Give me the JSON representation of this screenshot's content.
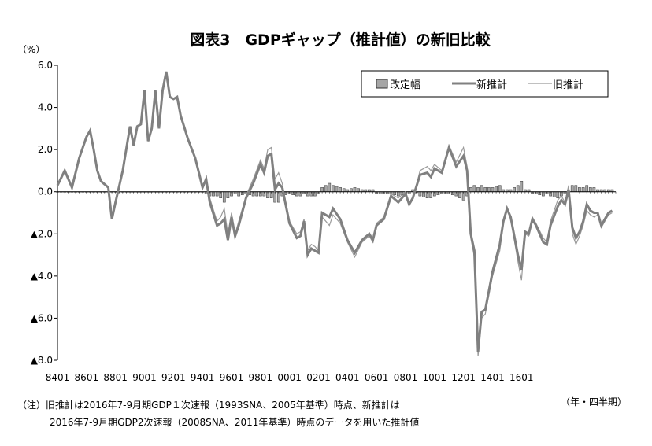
{
  "chart_data": {
    "type": "line",
    "title": "図表3　GDPギャップ（推計値）の新旧比較",
    "y_unit_label": "（%）",
    "x_unit_label": "（年・四半期）",
    "ylim": [
      -8,
      6
    ],
    "y_ticks": [
      {
        "value": 6,
        "label": "6.0"
      },
      {
        "value": 4,
        "label": "4.0"
      },
      {
        "value": 2,
        "label": "2.0"
      },
      {
        "value": 0,
        "label": "0.0"
      },
      {
        "value": -2,
        "label": "▲2.0"
      },
      {
        "value": -4,
        "label": "▲4.0"
      },
      {
        "value": -6,
        "label": "▲6.0"
      },
      {
        "value": -8,
        "label": "▲8.0"
      }
    ],
    "x_start_year": 1984,
    "x_tick_labels": [
      "8401",
      "8601",
      "8801",
      "9001",
      "9201",
      "9401",
      "9601",
      "9801",
      "0001",
      "0201",
      "0401",
      "0601",
      "0801",
      "1001",
      "1201",
      "1401",
      "1601"
    ],
    "grid": false,
    "legend_position": "top-right",
    "legend": [
      "改定幅",
      "新推計",
      "旧推計"
    ],
    "colors": {
      "new": "#808080",
      "old": "#9a9a9a",
      "bar": "#a6a6a6",
      "bar_edge": "#333333"
    },
    "new_keypoints": [
      [
        1984.0,
        0.3
      ],
      [
        1984.5,
        1.0
      ],
      [
        1985.0,
        0.2
      ],
      [
        1985.5,
        1.6
      ],
      [
        1986.0,
        2.6
      ],
      [
        1986.25,
        2.9
      ],
      [
        1986.5,
        2.0
      ],
      [
        1986.75,
        1.0
      ],
      [
        1987.0,
        0.5
      ],
      [
        1987.5,
        0.2
      ],
      [
        1987.75,
        -1.3
      ],
      [
        1988.0,
        -0.5
      ],
      [
        1988.5,
        1.0
      ],
      [
        1989.0,
        3.1
      ],
      [
        1989.25,
        2.2
      ],
      [
        1989.5,
        3.1
      ],
      [
        1989.75,
        3.2
      ],
      [
        1990.0,
        4.8
      ],
      [
        1990.25,
        2.4
      ],
      [
        1990.5,
        3.0
      ],
      [
        1990.75,
        4.8
      ],
      [
        1991.0,
        3.0
      ],
      [
        1991.25,
        4.8
      ],
      [
        1991.5,
        5.7
      ],
      [
        1991.75,
        4.5
      ],
      [
        1992.0,
        4.4
      ],
      [
        1992.25,
        4.5
      ],
      [
        1992.5,
        3.6
      ],
      [
        1993.0,
        2.5
      ],
      [
        1993.5,
        1.6
      ],
      [
        1994.0,
        0.2
      ],
      [
        1994.25,
        0.6
      ],
      [
        1994.5,
        -0.5
      ],
      [
        1995.0,
        -1.6
      ],
      [
        1995.25,
        -1.5
      ],
      [
        1995.5,
        -1.3
      ],
      [
        1995.75,
        -2.3
      ],
      [
        1996.0,
        -1.2
      ],
      [
        1996.25,
        -2.1
      ],
      [
        1996.5,
        -1.6
      ],
      [
        1997.0,
        -0.3
      ],
      [
        1997.5,
        0.4
      ],
      [
        1998.0,
        1.3
      ],
      [
        1998.25,
        0.9
      ],
      [
        1998.5,
        1.7
      ],
      [
        1998.75,
        1.8
      ],
      [
        1999.0,
        0.1
      ],
      [
        1999.25,
        0.4
      ],
      [
        1999.5,
        0.2
      ],
      [
        2000.0,
        -1.5
      ],
      [
        2000.5,
        -2.2
      ],
      [
        2000.75,
        -2.1
      ],
      [
        2001.0,
        -1.4
      ],
      [
        2001.25,
        -3.0
      ],
      [
        2001.5,
        -2.7
      ],
      [
        2001.75,
        -2.8
      ],
      [
        2002.0,
        -2.9
      ],
      [
        2002.25,
        -1.0
      ],
      [
        2002.5,
        -1.1
      ],
      [
        2002.75,
        -1.2
      ],
      [
        2003.0,
        -0.8
      ],
      [
        2003.5,
        -1.3
      ],
      [
        2004.0,
        -2.3
      ],
      [
        2004.5,
        -2.9
      ],
      [
        2005.0,
        -2.3
      ],
      [
        2005.5,
        -2.0
      ],
      [
        2005.75,
        -2.3
      ],
      [
        2006.0,
        -1.6
      ],
      [
        2006.5,
        -1.3
      ],
      [
        2007.0,
        -0.2
      ],
      [
        2007.5,
        -0.5
      ],
      [
        2008.0,
        -0.1
      ],
      [
        2008.25,
        -0.6
      ],
      [
        2008.5,
        -0.3
      ],
      [
        2009.0,
        0.8
      ],
      [
        2009.5,
        0.9
      ],
      [
        2009.75,
        0.7
      ],
      [
        2010.0,
        1.1
      ],
      [
        2010.5,
        0.9
      ],
      [
        2011.0,
        2.1
      ],
      [
        2011.5,
        1.2
      ],
      [
        2012.0,
        1.7
      ],
      [
        2012.25,
        1.0
      ],
      [
        2012.5,
        -2.0
      ],
      [
        2012.75,
        -2.8
      ],
      [
        2013.0,
        -7.6
      ],
      [
        2013.25,
        -5.7
      ],
      [
        2013.5,
        -5.6
      ],
      [
        2014.0,
        -3.8
      ],
      [
        2014.5,
        -2.5
      ],
      [
        2014.75,
        -1.4
      ],
      [
        2015.0,
        -0.8
      ],
      [
        2015.25,
        -1.2
      ],
      [
        2015.75,
        -3.0
      ],
      [
        2016.0,
        -3.7
      ],
      [
        2016.25,
        -1.9
      ],
      [
        2016.5,
        -2.0
      ],
      [
        2016.75,
        -1.3
      ],
      [
        2017.0,
        -1.6
      ],
      [
        2017.5,
        -2.4
      ],
      [
        2017.75,
        -2.5
      ],
      [
        2018.0,
        -1.6
      ],
      [
        2018.5,
        -0.7
      ],
      [
        2018.75,
        -0.4
      ],
      [
        2019.0,
        -0.6
      ],
      [
        2019.25,
        0.1
      ],
      [
        2019.5,
        -1.7
      ],
      [
        2019.75,
        -2.2
      ],
      [
        2020.0,
        -1.9
      ],
      [
        2020.25,
        -1.4
      ],
      [
        2020.5,
        -0.6
      ],
      [
        2020.75,
        -0.9
      ],
      [
        2021.0,
        -1.0
      ],
      [
        2021.25,
        -1.0
      ],
      [
        2021.5,
        -1.6
      ],
      [
        2021.75,
        -1.3
      ],
      [
        2022.0,
        -1.0
      ],
      [
        2022.25,
        -0.9
      ]
    ],
    "old_keypoints": [
      [
        1984.0,
        0.3
      ],
      [
        1984.5,
        1.0
      ],
      [
        1985.0,
        0.2
      ],
      [
        1985.5,
        1.6
      ],
      [
        1986.0,
        2.6
      ],
      [
        1986.25,
        2.9
      ],
      [
        1986.5,
        2.0
      ],
      [
        1986.75,
        1.0
      ],
      [
        1987.0,
        0.5
      ],
      [
        1987.5,
        0.2
      ],
      [
        1987.75,
        -1.3
      ],
      [
        1988.0,
        -0.5
      ],
      [
        1988.5,
        1.0
      ],
      [
        1989.0,
        3.1
      ],
      [
        1989.25,
        2.2
      ],
      [
        1989.5,
        3.1
      ],
      [
        1989.75,
        3.2
      ],
      [
        1990.0,
        4.8
      ],
      [
        1990.25,
        2.4
      ],
      [
        1990.5,
        3.0
      ],
      [
        1990.75,
        4.8
      ],
      [
        1991.0,
        3.0
      ],
      [
        1991.25,
        4.8
      ],
      [
        1991.5,
        5.7
      ],
      [
        1991.75,
        4.5
      ],
      [
        1992.0,
        4.4
      ],
      [
        1992.25,
        4.5
      ],
      [
        1992.5,
        3.6
      ],
      [
        1993.0,
        2.5
      ],
      [
        1993.5,
        1.6
      ],
      [
        1994.0,
        0.2
      ],
      [
        1994.25,
        0.7
      ],
      [
        1994.5,
        -0.3
      ],
      [
        1995.0,
        -1.4
      ],
      [
        1995.25,
        -1.2
      ],
      [
        1995.5,
        -0.8
      ],
      [
        1995.75,
        -2.0
      ],
      [
        1996.0,
        -1.0
      ],
      [
        1996.25,
        -2.0
      ],
      [
        1996.5,
        -1.4
      ],
      [
        1997.0,
        -0.2
      ],
      [
        1997.5,
        0.6
      ],
      [
        1998.0,
        1.5
      ],
      [
        1998.25,
        1.1
      ],
      [
        1998.5,
        2.0
      ],
      [
        1998.75,
        2.1
      ],
      [
        1999.0,
        0.6
      ],
      [
        1999.25,
        0.9
      ],
      [
        1999.5,
        0.4
      ],
      [
        2000.0,
        -1.4
      ],
      [
        2000.5,
        -2.0
      ],
      [
        2000.75,
        -1.9
      ],
      [
        2001.0,
        -1.3
      ],
      [
        2001.25,
        -2.8
      ],
      [
        2001.5,
        -2.5
      ],
      [
        2001.75,
        -2.6
      ],
      [
        2002.0,
        -2.8
      ],
      [
        2002.25,
        -1.2
      ],
      [
        2002.5,
        -1.4
      ],
      [
        2002.75,
        -1.6
      ],
      [
        2003.0,
        -1.1
      ],
      [
        2003.5,
        -1.5
      ],
      [
        2004.0,
        -2.4
      ],
      [
        2004.5,
        -3.1
      ],
      [
        2005.0,
        -2.4
      ],
      [
        2005.5,
        -2.1
      ],
      [
        2005.75,
        -2.4
      ],
      [
        2006.0,
        -1.5
      ],
      [
        2006.5,
        -1.2
      ],
      [
        2007.0,
        -0.1
      ],
      [
        2007.5,
        -0.3
      ],
      [
        2008.0,
        0.0
      ],
      [
        2008.25,
        -0.5
      ],
      [
        2008.5,
        -0.4
      ],
      [
        2009.0,
        1.0
      ],
      [
        2009.5,
        1.2
      ],
      [
        2009.75,
        1.0
      ],
      [
        2010.0,
        1.3
      ],
      [
        2010.5,
        1.0
      ],
      [
        2011.0,
        2.2
      ],
      [
        2011.5,
        1.4
      ],
      [
        2012.0,
        2.1
      ],
      [
        2012.25,
        1.2
      ],
      [
        2012.5,
        -2.2
      ],
      [
        2012.75,
        -3.1
      ],
      [
        2013.0,
        -7.8
      ],
      [
        2013.25,
        -6.0
      ],
      [
        2013.5,
        -5.8
      ],
      [
        2014.0,
        -4.0
      ],
      [
        2014.5,
        -2.8
      ],
      [
        2014.75,
        -1.5
      ],
      [
        2015.0,
        -0.9
      ],
      [
        2015.25,
        -1.3
      ],
      [
        2015.75,
        -3.3
      ],
      [
        2016.0,
        -4.2
      ],
      [
        2016.25,
        -2.0
      ],
      [
        2016.5,
        -2.1
      ],
      [
        2016.75,
        -1.2
      ],
      [
        2017.0,
        -1.5
      ],
      [
        2017.5,
        -2.2
      ],
      [
        2017.75,
        -2.4
      ],
      [
        2018.0,
        -1.4
      ],
      [
        2018.5,
        -0.4
      ],
      [
        2018.75,
        -0.2
      ],
      [
        2019.0,
        -0.5
      ],
      [
        2019.25,
        0.3
      ],
      [
        2019.5,
        -2.0
      ],
      [
        2019.75,
        -2.5
      ],
      [
        2020.0,
        -2.1
      ],
      [
        2020.25,
        -1.6
      ],
      [
        2020.5,
        -0.9
      ],
      [
        2020.75,
        -1.1
      ],
      [
        2021.0,
        -1.2
      ],
      [
        2021.25,
        -1.1
      ],
      [
        2021.5,
        -1.7
      ],
      [
        2021.75,
        -1.4
      ],
      [
        2022.0,
        -1.1
      ],
      [
        2022.25,
        -1.0
      ]
    ]
  },
  "footnote": {
    "line1": "（注）旧推計は2016年7-9月期GDP１次速報（1993SNA、2005年基準）時点、新推計は",
    "line2": "2016年7-9月期GDP2次速報（2008SNA、2011年基準）時点のデータを用いた推計値"
  }
}
